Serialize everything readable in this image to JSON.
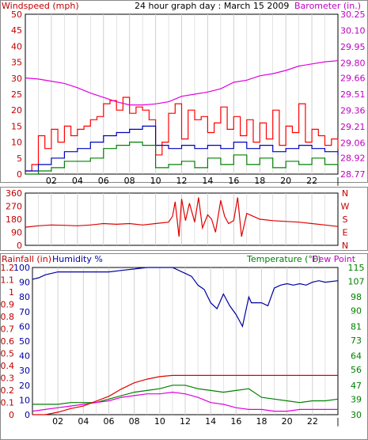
{
  "colors": {
    "background": "#ffffff",
    "grid": "#d0d0d0",
    "wind_gust": "#ff0000",
    "wind_avg": "#0000c0",
    "wind_min": "#008000",
    "barometer": "#e000e0",
    "direction": "#e00000",
    "humidity": "#0000a0",
    "temperature": "#008000",
    "dewpoint": "#e000e0",
    "rainfall": "#e00000",
    "axis_left": "#c00000",
    "axis_right": "#c000c0",
    "axis_green": "#008000",
    "axis_blue": "#0000a0"
  },
  "chart_data": [
    {
      "type": "line",
      "title": "24 hour graph day : March 15 2009",
      "left_axis_label": "Windspeed (mph)",
      "right_axis_label": "Barometer (in.)",
      "xticks": [
        "02",
        "04",
        "06",
        "08",
        "10",
        "12",
        "14",
        "16",
        "18",
        "20",
        "22"
      ],
      "x_end_label": "|",
      "ylim_left": [
        0,
        50
      ],
      "yticks_left": [
        0,
        5,
        10,
        15,
        20,
        25,
        30,
        35,
        40,
        45,
        50
      ],
      "ylim_right": [
        28.77,
        30.25
      ],
      "yticks_right": [
        28.77,
        28.92,
        29.06,
        29.21,
        29.36,
        29.51,
        29.66,
        29.8,
        29.95,
        30.1,
        30.25
      ],
      "grid": true,
      "series": [
        {
          "name": "Windspeed gust",
          "color_key": "wind_gust",
          "axis": "left",
          "x": [
            0,
            0.5,
            1,
            1.5,
            2,
            2.5,
            3,
            3.5,
            4,
            4.5,
            5,
            5.5,
            6,
            6.5,
            7,
            7.5,
            8,
            8.5,
            9,
            9.5,
            10,
            10.5,
            11,
            11.5,
            12,
            12.5,
            13,
            13.5,
            14,
            14.5,
            15,
            15.5,
            16,
            16.5,
            17,
            17.5,
            18,
            18.5,
            19,
            19.5,
            20,
            20.5,
            21,
            21.5,
            22,
            22.5,
            23,
            23.5,
            24
          ],
          "values": [
            1,
            3,
            12,
            8,
            14,
            10,
            15,
            12,
            14,
            15,
            17,
            18,
            22,
            23,
            20,
            24,
            19,
            21,
            20,
            17,
            6,
            10,
            19,
            22,
            11,
            20,
            17,
            18,
            13,
            16,
            21,
            14,
            18,
            12,
            17,
            10,
            16,
            11,
            20,
            9,
            15,
            13,
            22,
            10,
            14,
            12,
            9,
            11,
            8
          ]
        },
        {
          "name": "Windspeed average",
          "color_key": "wind_avg",
          "axis": "left",
          "x": [
            0,
            1,
            2,
            3,
            4,
            5,
            6,
            7,
            8,
            9,
            10,
            11,
            12,
            13,
            14,
            15,
            16,
            17,
            18,
            19,
            20,
            21,
            22,
            23,
            24
          ],
          "values": [
            1,
            3,
            5,
            7,
            8,
            10,
            12,
            13,
            14,
            15,
            9,
            8,
            9,
            8,
            9,
            8,
            10,
            8,
            9,
            7,
            8,
            9,
            8,
            7,
            6
          ]
        },
        {
          "name": "Windspeed minimum",
          "color_key": "wind_min",
          "axis": "left",
          "x": [
            0,
            1,
            2,
            3,
            4,
            5,
            6,
            7,
            8,
            9,
            10,
            11,
            12,
            13,
            14,
            15,
            16,
            17,
            18,
            19,
            20,
            21,
            22,
            23,
            24
          ],
          "values": [
            0,
            1,
            2,
            4,
            4,
            5,
            8,
            9,
            10,
            9,
            2,
            3,
            4,
            2,
            5,
            3,
            6,
            3,
            5,
            2,
            4,
            3,
            5,
            3,
            4
          ]
        },
        {
          "name": "Barometer",
          "color_key": "barometer",
          "axis": "right",
          "x": [
            0,
            1,
            2,
            3,
            4,
            5,
            6,
            7,
            8,
            9,
            10,
            11,
            12,
            13,
            14,
            15,
            16,
            17,
            18,
            19,
            20,
            21,
            22,
            23,
            24
          ],
          "values": [
            29.66,
            29.65,
            29.63,
            29.61,
            29.57,
            29.52,
            29.48,
            29.44,
            29.41,
            29.41,
            29.42,
            29.44,
            29.49,
            29.51,
            29.53,
            29.56,
            29.62,
            29.64,
            29.68,
            29.7,
            29.73,
            29.77,
            29.79,
            29.81,
            29.82
          ]
        }
      ]
    },
    {
      "type": "line",
      "title": "",
      "yticks_left": [
        0,
        90,
        180,
        270,
        360
      ],
      "ylim_left": [
        0,
        360
      ],
      "right_labels": [
        "N",
        "W",
        "S",
        "E",
        "N"
      ],
      "grid": true,
      "series": [
        {
          "name": "Wind direction",
          "color_key": "direction",
          "x": [
            0,
            1,
            2,
            3,
            4,
            5,
            6,
            7,
            8,
            9,
            10,
            11,
            11.3,
            11.5,
            11.8,
            12,
            12.3,
            12.6,
            13,
            13.3,
            13.6,
            14,
            14.3,
            14.6,
            15,
            15.3,
            15.6,
            16,
            16.3,
            16.6,
            17,
            17.5,
            18,
            19,
            20,
            21,
            22,
            23,
            24
          ],
          "values": [
            125,
            135,
            140,
            138,
            135,
            140,
            150,
            145,
            150,
            140,
            150,
            160,
            200,
            300,
            60,
            320,
            170,
            290,
            160,
            330,
            120,
            210,
            180,
            90,
            310,
            200,
            150,
            170,
            330,
            60,
            220,
            200,
            180,
            170,
            165,
            160,
            150,
            140,
            130
          ]
        }
      ]
    },
    {
      "type": "line",
      "title": "",
      "left_outer_axis_label": "Rainfall (in)",
      "left_inner_axis_label": "Humidity %",
      "right_axis_label": "Temperature (°F)",
      "right_axis_label2": "Dew Point",
      "xticks": [
        "02",
        "04",
        "06",
        "08",
        "10",
        "12",
        "14",
        "16",
        "18",
        "20",
        "22"
      ],
      "x_end_label": "|",
      "yticks_rain": [
        0,
        0.1,
        0.2,
        0.3,
        0.4,
        0.5,
        0.6,
        0.7,
        0.8,
        0.9,
        1,
        1.1,
        1.2
      ],
      "ylim_rain": [
        0,
        1.2
      ],
      "yticks_humidity": [
        0,
        10,
        20,
        30,
        40,
        50,
        60,
        70,
        80,
        90,
        100
      ],
      "ylim_humidity": [
        0,
        100
      ],
      "yticks_temp": [
        30,
        39,
        47,
        56,
        64,
        73,
        81,
        90,
        98,
        107,
        115
      ],
      "ylim_temp": [
        30,
        115
      ],
      "grid": true,
      "series": [
        {
          "name": "Humidity",
          "color_key": "humidity",
          "axis": "humidity",
          "x": [
            0,
            0.5,
            1,
            2,
            3,
            4,
            5,
            6,
            7,
            8,
            9,
            10,
            11,
            12,
            12.5,
            13,
            13.5,
            14,
            14.5,
            15,
            15.5,
            16,
            16.5,
            17,
            17.2,
            17.5,
            18,
            18.5,
            19,
            19.5,
            20,
            20.5,
            21,
            21.5,
            22,
            22.5,
            23,
            24
          ],
          "values": [
            92,
            93,
            95,
            97,
            97,
            97,
            97,
            97,
            98,
            99,
            100,
            100,
            100,
            96,
            94,
            88,
            85,
            76,
            72,
            82,
            74,
            68,
            60,
            80,
            76,
            76,
            76,
            74,
            86,
            88,
            89,
            88,
            89,
            88,
            90,
            91,
            90,
            91
          ]
        },
        {
          "name": "Temperature",
          "color_key": "temperature",
          "axis": "temp",
          "x": [
            0,
            1,
            2,
            3,
            4,
            5,
            6,
            7,
            8,
            9,
            10,
            11,
            12,
            13,
            14,
            15,
            16,
            17,
            18,
            19,
            20,
            21,
            22,
            23,
            24
          ],
          "values": [
            36,
            36,
            36,
            37,
            37,
            37,
            39,
            41,
            43,
            44,
            45,
            47,
            47,
            45,
            44,
            43,
            44,
            45,
            40,
            39,
            38,
            37,
            38,
            38,
            39
          ]
        },
        {
          "name": "Dew Point",
          "color_key": "dewpoint",
          "axis": "temp",
          "x": [
            0,
            1,
            2,
            3,
            4,
            5,
            6,
            7,
            8,
            9,
            10,
            11,
            12,
            13,
            14,
            15,
            16,
            17,
            18,
            19,
            20,
            21,
            22,
            23,
            24
          ],
          "values": [
            32,
            33,
            34,
            35,
            36,
            37,
            38,
            40,
            41,
            42,
            42,
            43,
            42,
            40,
            37,
            36,
            34,
            33,
            33,
            32,
            32,
            33,
            33,
            33,
            33
          ]
        },
        {
          "name": "Rainfall",
          "color_key": "rainfall",
          "axis": "rain",
          "x": [
            0,
            1,
            2,
            3,
            4,
            5,
            6,
            7,
            8,
            9,
            10,
            11,
            12,
            13,
            14,
            15,
            16,
            17,
            18,
            19,
            20,
            21,
            22,
            23,
            24
          ],
          "values": [
            0,
            0,
            0.02,
            0.05,
            0.07,
            0.11,
            0.15,
            0.21,
            0.26,
            0.29,
            0.31,
            0.32,
            0.32,
            0.32,
            0.32,
            0.32,
            0.32,
            0.32,
            0.32,
            0.32,
            0.32,
            0.32,
            0.32,
            0.32,
            0.32
          ]
        }
      ]
    }
  ]
}
